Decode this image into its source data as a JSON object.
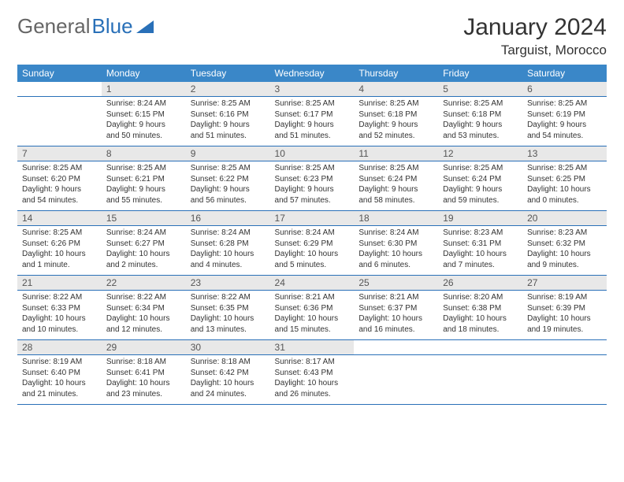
{
  "logo": {
    "text1": "General",
    "text2": "Blue",
    "shape_color": "#2970b8"
  },
  "header": {
    "month_title": "January 2024",
    "location": "Targuist, Morocco"
  },
  "colors": {
    "header_bg": "#3a87c8",
    "daynum_bg": "#e8e8e8",
    "row_border": "#2970b8",
    "text": "#333333"
  },
  "day_labels": [
    "Sunday",
    "Monday",
    "Tuesday",
    "Wednesday",
    "Thursday",
    "Friday",
    "Saturday"
  ],
  "weeks": [
    {
      "nums": [
        "",
        "1",
        "2",
        "3",
        "4",
        "5",
        "6"
      ],
      "cells": [
        null,
        {
          "sunrise": "Sunrise: 8:24 AM",
          "sunset": "Sunset: 6:15 PM",
          "dl1": "Daylight: 9 hours",
          "dl2": "and 50 minutes."
        },
        {
          "sunrise": "Sunrise: 8:25 AM",
          "sunset": "Sunset: 6:16 PM",
          "dl1": "Daylight: 9 hours",
          "dl2": "and 51 minutes."
        },
        {
          "sunrise": "Sunrise: 8:25 AM",
          "sunset": "Sunset: 6:17 PM",
          "dl1": "Daylight: 9 hours",
          "dl2": "and 51 minutes."
        },
        {
          "sunrise": "Sunrise: 8:25 AM",
          "sunset": "Sunset: 6:18 PM",
          "dl1": "Daylight: 9 hours",
          "dl2": "and 52 minutes."
        },
        {
          "sunrise": "Sunrise: 8:25 AM",
          "sunset": "Sunset: 6:18 PM",
          "dl1": "Daylight: 9 hours",
          "dl2": "and 53 minutes."
        },
        {
          "sunrise": "Sunrise: 8:25 AM",
          "sunset": "Sunset: 6:19 PM",
          "dl1": "Daylight: 9 hours",
          "dl2": "and 54 minutes."
        }
      ]
    },
    {
      "nums": [
        "7",
        "8",
        "9",
        "10",
        "11",
        "12",
        "13"
      ],
      "cells": [
        {
          "sunrise": "Sunrise: 8:25 AM",
          "sunset": "Sunset: 6:20 PM",
          "dl1": "Daylight: 9 hours",
          "dl2": "and 54 minutes."
        },
        {
          "sunrise": "Sunrise: 8:25 AM",
          "sunset": "Sunset: 6:21 PM",
          "dl1": "Daylight: 9 hours",
          "dl2": "and 55 minutes."
        },
        {
          "sunrise": "Sunrise: 8:25 AM",
          "sunset": "Sunset: 6:22 PM",
          "dl1": "Daylight: 9 hours",
          "dl2": "and 56 minutes."
        },
        {
          "sunrise": "Sunrise: 8:25 AM",
          "sunset": "Sunset: 6:23 PM",
          "dl1": "Daylight: 9 hours",
          "dl2": "and 57 minutes."
        },
        {
          "sunrise": "Sunrise: 8:25 AM",
          "sunset": "Sunset: 6:24 PM",
          "dl1": "Daylight: 9 hours",
          "dl2": "and 58 minutes."
        },
        {
          "sunrise": "Sunrise: 8:25 AM",
          "sunset": "Sunset: 6:24 PM",
          "dl1": "Daylight: 9 hours",
          "dl2": "and 59 minutes."
        },
        {
          "sunrise": "Sunrise: 8:25 AM",
          "sunset": "Sunset: 6:25 PM",
          "dl1": "Daylight: 10 hours",
          "dl2": "and 0 minutes."
        }
      ]
    },
    {
      "nums": [
        "14",
        "15",
        "16",
        "17",
        "18",
        "19",
        "20"
      ],
      "cells": [
        {
          "sunrise": "Sunrise: 8:25 AM",
          "sunset": "Sunset: 6:26 PM",
          "dl1": "Daylight: 10 hours",
          "dl2": "and 1 minute."
        },
        {
          "sunrise": "Sunrise: 8:24 AM",
          "sunset": "Sunset: 6:27 PM",
          "dl1": "Daylight: 10 hours",
          "dl2": "and 2 minutes."
        },
        {
          "sunrise": "Sunrise: 8:24 AM",
          "sunset": "Sunset: 6:28 PM",
          "dl1": "Daylight: 10 hours",
          "dl2": "and 4 minutes."
        },
        {
          "sunrise": "Sunrise: 8:24 AM",
          "sunset": "Sunset: 6:29 PM",
          "dl1": "Daylight: 10 hours",
          "dl2": "and 5 minutes."
        },
        {
          "sunrise": "Sunrise: 8:24 AM",
          "sunset": "Sunset: 6:30 PM",
          "dl1": "Daylight: 10 hours",
          "dl2": "and 6 minutes."
        },
        {
          "sunrise": "Sunrise: 8:23 AM",
          "sunset": "Sunset: 6:31 PM",
          "dl1": "Daylight: 10 hours",
          "dl2": "and 7 minutes."
        },
        {
          "sunrise": "Sunrise: 8:23 AM",
          "sunset": "Sunset: 6:32 PM",
          "dl1": "Daylight: 10 hours",
          "dl2": "and 9 minutes."
        }
      ]
    },
    {
      "nums": [
        "21",
        "22",
        "23",
        "24",
        "25",
        "26",
        "27"
      ],
      "cells": [
        {
          "sunrise": "Sunrise: 8:22 AM",
          "sunset": "Sunset: 6:33 PM",
          "dl1": "Daylight: 10 hours",
          "dl2": "and 10 minutes."
        },
        {
          "sunrise": "Sunrise: 8:22 AM",
          "sunset": "Sunset: 6:34 PM",
          "dl1": "Daylight: 10 hours",
          "dl2": "and 12 minutes."
        },
        {
          "sunrise": "Sunrise: 8:22 AM",
          "sunset": "Sunset: 6:35 PM",
          "dl1": "Daylight: 10 hours",
          "dl2": "and 13 minutes."
        },
        {
          "sunrise": "Sunrise: 8:21 AM",
          "sunset": "Sunset: 6:36 PM",
          "dl1": "Daylight: 10 hours",
          "dl2": "and 15 minutes."
        },
        {
          "sunrise": "Sunrise: 8:21 AM",
          "sunset": "Sunset: 6:37 PM",
          "dl1": "Daylight: 10 hours",
          "dl2": "and 16 minutes."
        },
        {
          "sunrise": "Sunrise: 8:20 AM",
          "sunset": "Sunset: 6:38 PM",
          "dl1": "Daylight: 10 hours",
          "dl2": "and 18 minutes."
        },
        {
          "sunrise": "Sunrise: 8:19 AM",
          "sunset": "Sunset: 6:39 PM",
          "dl1": "Daylight: 10 hours",
          "dl2": "and 19 minutes."
        }
      ]
    },
    {
      "nums": [
        "28",
        "29",
        "30",
        "31",
        "",
        "",
        ""
      ],
      "cells": [
        {
          "sunrise": "Sunrise: 8:19 AM",
          "sunset": "Sunset: 6:40 PM",
          "dl1": "Daylight: 10 hours",
          "dl2": "and 21 minutes."
        },
        {
          "sunrise": "Sunrise: 8:18 AM",
          "sunset": "Sunset: 6:41 PM",
          "dl1": "Daylight: 10 hours",
          "dl2": "and 23 minutes."
        },
        {
          "sunrise": "Sunrise: 8:18 AM",
          "sunset": "Sunset: 6:42 PM",
          "dl1": "Daylight: 10 hours",
          "dl2": "and 24 minutes."
        },
        {
          "sunrise": "Sunrise: 8:17 AM",
          "sunset": "Sunset: 6:43 PM",
          "dl1": "Daylight: 10 hours",
          "dl2": "and 26 minutes."
        },
        null,
        null,
        null
      ]
    }
  ]
}
